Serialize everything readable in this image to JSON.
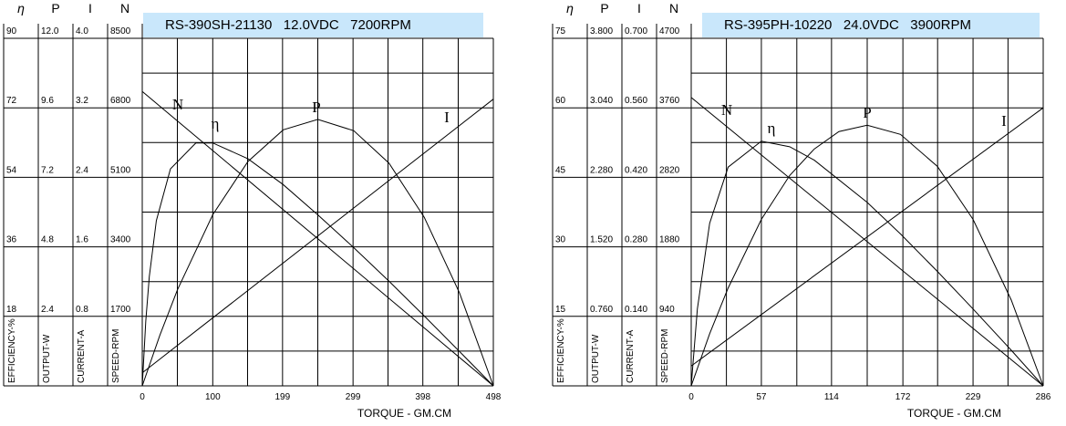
{
  "chart_data": [
    {
      "type": "line",
      "title": "RS-390SH-21130   12.0VDC   7200RPM",
      "xlabel": "TORQUE - GM.CM",
      "color": "#000000",
      "xlim": [
        0,
        498
      ],
      "xticks": [
        0,
        100,
        199,
        299,
        398,
        498
      ],
      "axes": [
        {
          "symbol": "η",
          "label": "EFFICIENCY-%",
          "ylim": [
            0,
            90
          ],
          "yticks": [
            18,
            36,
            54,
            72,
            90
          ]
        },
        {
          "symbol": "P",
          "label": "OUTPUT-W",
          "ylim": [
            0,
            12
          ],
          "yticks": [
            2.4,
            4.8,
            7.2,
            9.6,
            {
              "value": 12,
              "label": "12.0"
            }
          ]
        },
        {
          "symbol": "I",
          "label": "CURRENT-A",
          "ylim": [
            0,
            4
          ],
          "yticks": [
            0.8,
            1.6,
            2.4,
            3.2,
            {
              "value": 4,
              "label": "4.0"
            }
          ]
        },
        {
          "symbol": "N",
          "label": "SPEED-RPM",
          "ylim": [
            0,
            8500
          ],
          "yticks": [
            1700,
            3400,
            5100,
            6800,
            8500
          ]
        }
      ],
      "series": [
        {
          "name": "N",
          "axis": "N",
          "x": [
            0,
            498
          ],
          "values": [
            7200,
            0
          ]
        },
        {
          "name": "I",
          "axis": "I",
          "x": [
            0,
            498
          ],
          "values": [
            0.15,
            3.3
          ]
        },
        {
          "name": "P",
          "axis": "P",
          "x": [
            0,
            25,
            50,
            100,
            150,
            200,
            249,
            300,
            350,
            400,
            450,
            498
          ],
          "values": [
            0,
            1.75,
            3.32,
            5.91,
            7.75,
            8.84,
            9.2,
            8.81,
            7.69,
            5.82,
            3.21,
            0
          ]
        },
        {
          "name": "η",
          "axis": "η",
          "x": [
            0,
            5,
            10,
            20,
            40,
            76,
            100,
            150,
            200,
            249,
            300,
            350,
            400,
            450,
            498
          ],
          "values": [
            0,
            16.8,
            28.3,
            42.8,
            56.2,
            62.9,
            62.9,
            58.8,
            52.1,
            44.3,
            35.8,
            27.1,
            18.1,
            8.9,
            0
          ]
        }
      ]
    },
    {
      "type": "line",
      "title": "RS-395PH-10220   24.0VDC   3900RPM",
      "xlabel": "TORQUE - GM.CM",
      "color": "#000000",
      "xlim": [
        0,
        286
      ],
      "xticks": [
        0,
        57,
        114,
        172,
        229,
        286
      ],
      "axes": [
        {
          "symbol": "η",
          "label": "EFFICIENCY-%",
          "ylim": [
            0,
            75
          ],
          "yticks": [
            15,
            30,
            45,
            60,
            75
          ]
        },
        {
          "symbol": "P",
          "label": "OUTPUT-W",
          "ylim": [
            0,
            3.8
          ],
          "yticks": [
            {
              "value": 0.76,
              "label": "0.760"
            },
            {
              "value": 1.52,
              "label": "1.520"
            },
            {
              "value": 2.28,
              "label": "2.280"
            },
            {
              "value": 3.04,
              "label": "3.040"
            },
            {
              "value": 3.8,
              "label": "3.800"
            }
          ]
        },
        {
          "symbol": "I",
          "label": "CURRENT-A",
          "ylim": [
            0,
            0.7
          ],
          "yticks": [
            {
              "value": 0.14,
              "label": "0.140"
            },
            {
              "value": 0.28,
              "label": "0.280"
            },
            {
              "value": 0.42,
              "label": "0.420"
            },
            {
              "value": 0.56,
              "label": "0.560"
            },
            {
              "value": 0.7,
              "label": "0.700"
            }
          ]
        },
        {
          "symbol": "N",
          "label": "SPEED-RPM",
          "ylim": [
            0,
            4700
          ],
          "yticks": [
            940,
            1880,
            2820,
            3760,
            4700
          ]
        }
      ],
      "series": [
        {
          "name": "N",
          "axis": "N",
          "x": [
            0,
            286
          ],
          "values": [
            3900,
            0
          ]
        },
        {
          "name": "I",
          "axis": "I",
          "x": [
            0,
            286
          ],
          "values": [
            0.04,
            0.56
          ]
        },
        {
          "name": "P",
          "axis": "P",
          "x": [
            0,
            15,
            30,
            57,
            80,
            100,
            120,
            143,
            170,
            200,
            229,
            260,
            286
          ],
          "values": [
            0,
            0.57,
            1.07,
            1.82,
            2.3,
            2.59,
            2.78,
            2.85,
            2.75,
            2.4,
            1.82,
            0.94,
            0
          ]
        },
        {
          "name": "η",
          "axis": "η",
          "x": [
            0,
            5,
            15,
            30,
            57,
            80,
            100,
            143,
            170,
            200,
            229,
            260,
            286
          ],
          "values": [
            0,
            16.6,
            35.1,
            47.2,
            52.8,
            51.6,
            48.7,
            39.6,
            32.8,
            24.7,
            16.6,
            7.7,
            0
          ]
        }
      ]
    }
  ]
}
